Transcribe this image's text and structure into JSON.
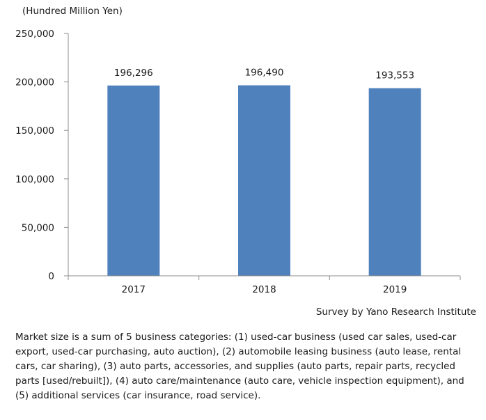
{
  "chart_data": {
    "type": "bar",
    "unit_label": "(Hundred Million Yen)",
    "categories": [
      "2017",
      "2018",
      "2019"
    ],
    "values": [
      196296,
      196490,
      193553
    ],
    "data_labels": [
      "196,296",
      "196,490",
      "193,553"
    ],
    "ylim": [
      0,
      250000
    ],
    "yticks": [
      0,
      50000,
      100000,
      150000,
      200000,
      250000
    ],
    "ytick_labels": [
      "0",
      "50,000",
      "100,000",
      "150,000",
      "200,000",
      "250,000"
    ],
    "grid": false,
    "bar_color": "#4f81bd",
    "xlabel": "",
    "ylabel": ""
  },
  "source": "Survey by Yano Research Institute",
  "note": "Market size is a sum of 5 business categories: (1) used-car business (used car sales, used-car export, used-car purchasing, auto auction), (2) automobile leasing business (auto lease, rental cars, car sharing), (3) auto parts, accessories, and supplies (auto parts, repair parts, recycled parts [used/rebuilt]), (4) auto care/maintenance (auto care, vehicle inspection equipment), and (5) additional services (car insurance, road service)."
}
